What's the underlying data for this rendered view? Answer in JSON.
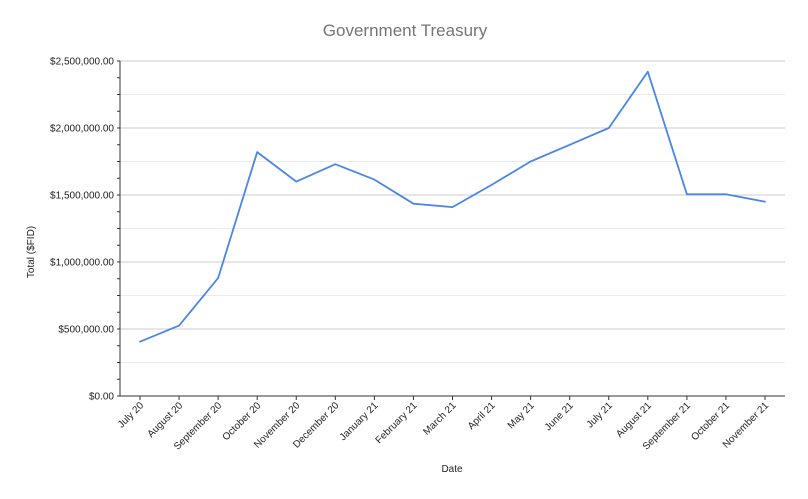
{
  "chart_data": {
    "type": "line",
    "title": "Government Treasury",
    "xlabel": "Date",
    "ylabel": "Total ($FID)",
    "categories": [
      "July 20",
      "August 20",
      "September 20",
      "October 20",
      "November 20",
      "December 20",
      "January 21",
      "February 21",
      "March 21",
      "April 21",
      "May 21",
      "June 21",
      "July 21",
      "August 21",
      "September 21",
      "October 21",
      "November 21"
    ],
    "series": [
      {
        "values": [
          405000,
          525000,
          880000,
          1820000,
          1600000,
          1730000,
          1615000,
          1435000,
          1410000,
          1575000,
          1750000,
          1875000,
          2000000,
          2420000,
          1505000,
          1505000,
          1450000
        ]
      }
    ],
    "ylim": [
      0,
      2500000
    ],
    "yticks": [
      "$0.00",
      "$500,000.00",
      "$1,000,000.00",
      "$1,500,000.00",
      "$2,000,000.00",
      "$2,500,000.00"
    ],
    "grid": true,
    "line_color": "#4a86e8"
  }
}
